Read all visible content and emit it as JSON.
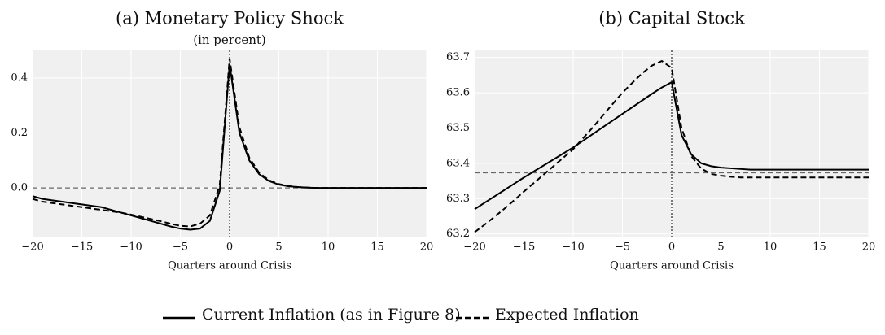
{
  "chart_data": [
    {
      "type": "line",
      "title": "(a) Monetary Policy Shock",
      "subtitle": "(in percent)",
      "xlabel": "Quarters around Crisis",
      "x": [
        -20,
        -19,
        -18,
        -17,
        -16,
        -15,
        -14,
        -13,
        -12,
        -11,
        -10,
        -9,
        -8,
        -7,
        -6,
        -5,
        -4,
        -3,
        -2,
        -1,
        0,
        1,
        2,
        3,
        4,
        5,
        6,
        7,
        8,
        9,
        10,
        11,
        12,
        13,
        14,
        15,
        16,
        17,
        18,
        19,
        20
      ],
      "series": [
        {
          "name": "Current Inflation (as in Figure 8)",
          "color": "#000000",
          "dash": "solid",
          "values": [
            -0.03,
            -0.04,
            -0.045,
            -0.05,
            -0.055,
            -0.06,
            -0.065,
            -0.07,
            -0.08,
            -0.09,
            -0.1,
            -0.11,
            -0.12,
            -0.13,
            -0.14,
            -0.148,
            -0.152,
            -0.148,
            -0.12,
            -0.01,
            0.45,
            0.2,
            0.1,
            0.05,
            0.025,
            0.012,
            0.006,
            0.003,
            0.001,
            0,
            0,
            0,
            0,
            0,
            0,
            0,
            0,
            0,
            0,
            0,
            0
          ]
        },
        {
          "name": "Expected Inflation",
          "color": "#000000",
          "dash": "dashed",
          "values": [
            -0.04,
            -0.05,
            -0.055,
            -0.06,
            -0.065,
            -0.07,
            -0.075,
            -0.08,
            -0.085,
            -0.09,
            -0.097,
            -0.105,
            -0.113,
            -0.121,
            -0.13,
            -0.138,
            -0.14,
            -0.13,
            -0.1,
            0.01,
            0.47,
            0.22,
            0.11,
            0.055,
            0.028,
            0.014,
            0.007,
            0.003,
            0.001,
            0,
            0,
            0,
            0,
            0,
            0,
            0,
            0,
            0,
            0,
            0,
            0
          ]
        }
      ],
      "hline": 0,
      "vline": 0,
      "xlim": [
        -20,
        20
      ],
      "xticks": [
        {
          "value": -20,
          "label": "−20"
        },
        {
          "value": -15,
          "label": "−15"
        },
        {
          "value": -10,
          "label": "−10"
        },
        {
          "value": -5,
          "label": "−5"
        },
        0,
        5,
        10,
        15,
        20
      ],
      "ylim": [
        -0.18,
        0.5
      ],
      "yticks": [
        {
          "value": 0,
          "label": "0.0"
        },
        0.2,
        0.4
      ],
      "grid": true
    },
    {
      "type": "line",
      "title": "(b) Capital Stock",
      "xlabel": "Quarters around Crisis",
      "x": [
        -20,
        -19,
        -18,
        -17,
        -16,
        -15,
        -14,
        -13,
        -12,
        -11,
        -10,
        -9,
        -8,
        -7,
        -6,
        -5,
        -4,
        -3,
        -2,
        -1,
        0,
        1,
        2,
        3,
        4,
        5,
        6,
        7,
        8,
        9,
        10,
        11,
        12,
        13,
        14,
        15,
        16,
        17,
        18,
        19,
        20
      ],
      "series": [
        {
          "name": "Current Inflation (as in Figure 8)",
          "color": "#000000",
          "dash": "solid",
          "values": [
            63.27,
            63.288,
            63.306,
            63.324,
            63.342,
            63.36,
            63.377,
            63.394,
            63.411,
            63.428,
            63.445,
            63.464,
            63.483,
            63.502,
            63.521,
            63.54,
            63.559,
            63.578,
            63.597,
            63.615,
            63.63,
            63.48,
            63.425,
            63.4,
            63.392,
            63.388,
            63.386,
            63.384,
            63.382,
            63.382,
            63.382,
            63.382,
            63.382,
            63.382,
            63.382,
            63.382,
            63.382,
            63.382,
            63.382,
            63.382,
            63.382
          ]
        },
        {
          "name": "Expected Inflation",
          "color": "#000000",
          "dash": "dashed",
          "values": [
            63.205,
            63.226,
            63.248,
            63.271,
            63.295,
            63.32,
            63.344,
            63.368,
            63.392,
            63.416,
            63.44,
            63.471,
            63.502,
            63.535,
            63.568,
            63.6,
            63.628,
            63.655,
            63.677,
            63.69,
            63.67,
            63.5,
            63.42,
            63.385,
            63.37,
            63.365,
            63.362,
            63.36,
            63.36,
            63.36,
            63.36,
            63.36,
            63.36,
            63.36,
            63.36,
            63.36,
            63.36,
            63.36,
            63.36,
            63.36,
            63.36
          ]
        }
      ],
      "hline": 63.373,
      "vline": 0,
      "xlim": [
        -20,
        20
      ],
      "xticks": [
        {
          "value": -20,
          "label": "−20"
        },
        {
          "value": -15,
          "label": "−15"
        },
        {
          "value": -10,
          "label": "−10"
        },
        {
          "value": -5,
          "label": "−5"
        },
        0,
        5,
        10,
        15,
        20
      ],
      "ylim": [
        63.19,
        63.72
      ],
      "yticks": [
        63.2,
        63.3,
        63.4,
        63.5,
        63.6,
        63.7
      ],
      "grid": true
    }
  ]
}
